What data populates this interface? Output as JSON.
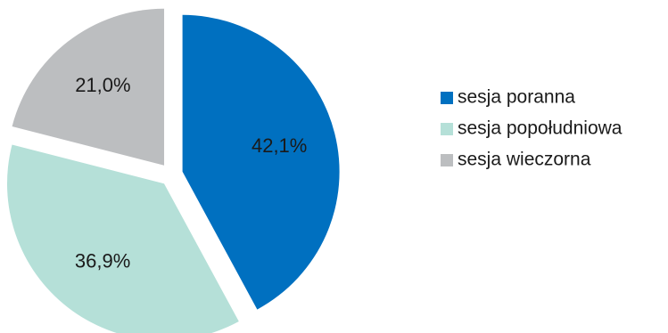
{
  "chart_data": {
    "type": "pie",
    "title": "",
    "categories": [
      "sesja poranna",
      "sesja popołudniowa",
      "sesja wieczorna"
    ],
    "values": [
      42.1,
      36.9,
      21.0
    ],
    "labels": [
      "42,1%",
      "36,9%",
      "21,0%"
    ],
    "colors": [
      "#0070c0",
      "#b5e0d8",
      "#bcbec0"
    ],
    "exploded": true,
    "start_angle": "12 o'clock",
    "direction": "clockwise",
    "legend_position": "right"
  }
}
